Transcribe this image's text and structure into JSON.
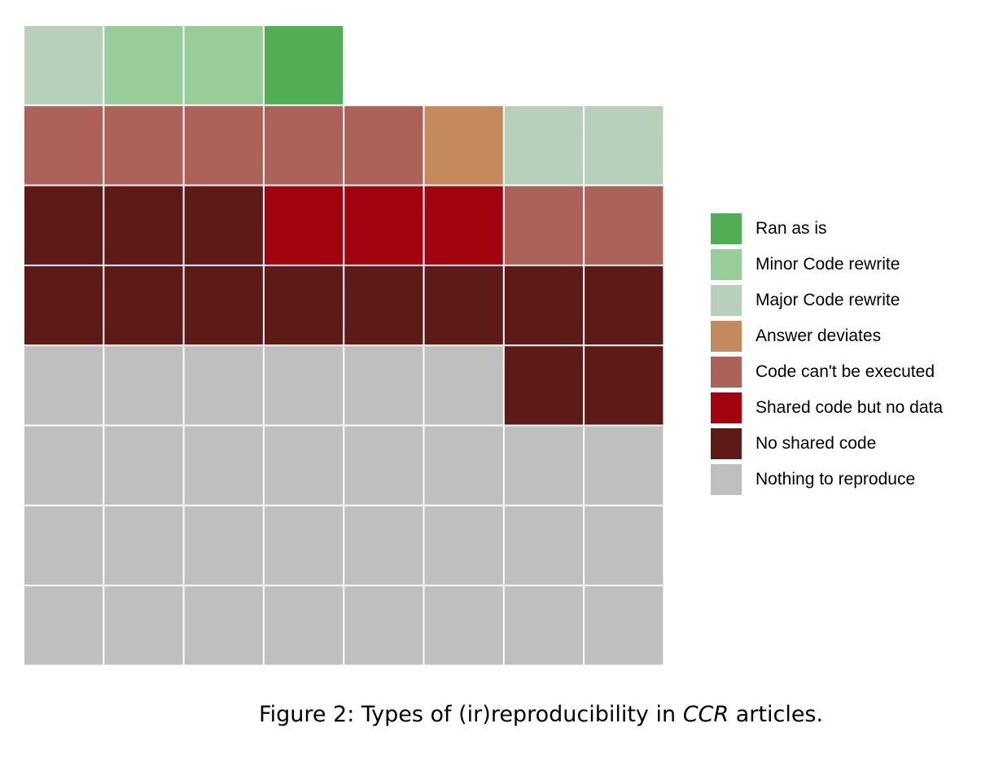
{
  "chart_data": {
    "type": "waffle",
    "columns": 8,
    "categories": [
      {
        "key": "ran",
        "label": "Ran as is",
        "color": "#52ae55"
      },
      {
        "key": "minor",
        "label": "Minor Code rewrite",
        "color": "#96cd98"
      },
      {
        "key": "major",
        "label": "Major Code rewrite",
        "color": "#b8cfbc"
      },
      {
        "key": "deviates",
        "label": "Answer deviates",
        "color": "#c4895d"
      },
      {
        "key": "cantexec",
        "label": "Code can't be executed",
        "color": "#ad6259"
      },
      {
        "key": "nodata",
        "label": "Shared code but no data",
        "color": "#a1040f"
      },
      {
        "key": "nocode",
        "label": "No shared code",
        "color": "#5e1a17"
      },
      {
        "key": "nothing",
        "label": "Nothing to reproduce",
        "color": "#bfbfbf"
      }
    ],
    "grid_rows_top_to_bottom": [
      [
        "major",
        "minor",
        "minor",
        "ran"
      ],
      [
        "cantexec",
        "cantexec",
        "cantexec",
        "cantexec",
        "cantexec",
        "deviates",
        "major",
        "major"
      ],
      [
        "nocode",
        "nocode",
        "nocode",
        "nodata",
        "nodata",
        "nodata",
        "cantexec",
        "cantexec"
      ],
      [
        "nocode",
        "nocode",
        "nocode",
        "nocode",
        "nocode",
        "nocode",
        "nocode",
        "nocode"
      ],
      [
        "nothing",
        "nothing",
        "nothing",
        "nothing",
        "nothing",
        "nothing",
        "nocode",
        "nocode"
      ],
      [
        "nothing",
        "nothing",
        "nothing",
        "nothing",
        "nothing",
        "nothing",
        "nothing",
        "nothing"
      ],
      [
        "nothing",
        "nothing",
        "nothing",
        "nothing",
        "nothing",
        "nothing",
        "nothing",
        "nothing"
      ],
      [
        "nothing",
        "nothing",
        "nothing",
        "nothing",
        "nothing",
        "nothing",
        "nothing",
        "nothing"
      ]
    ],
    "legend_position": "right"
  },
  "caption": {
    "prefix": "Figure 2: Types of (ir)reproducibility in ",
    "emphasis": "CCR",
    "suffix": " articles."
  }
}
